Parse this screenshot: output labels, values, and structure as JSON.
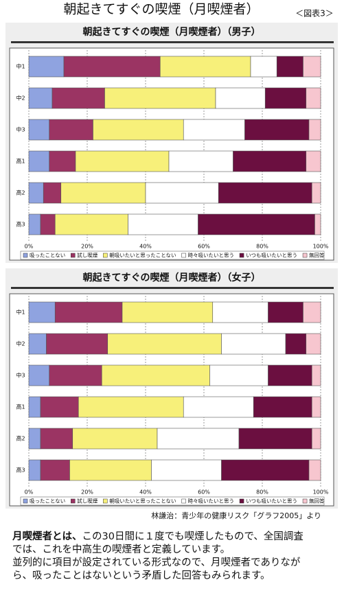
{
  "title": "朝起きてすぐの喫煙（月喫煙者）",
  "figure_label": "＜図表3＞",
  "chart_data": [
    {
      "type": "stacked-bar-horizontal",
      "title": "朝起きてすぐの喫煙（月喫煙者）（男子）",
      "categories": [
        "中1",
        "中2",
        "中3",
        "高1",
        "高2",
        "高3"
      ],
      "series": [
        {
          "name": "吸ったことない",
          "color": "#8fa3e0",
          "values": [
            12,
            8,
            7,
            7,
            5,
            4
          ]
        },
        {
          "name": "試し喫煙",
          "color": "#9b3463",
          "values": [
            33,
            18,
            15,
            9,
            6,
            5
          ]
        },
        {
          "name": "朝吸いたいと思ったことない",
          "color": "#f7f07a",
          "values": [
            31,
            38,
            31,
            32,
            29,
            25
          ]
        },
        {
          "name": "時々吸いたいと思う",
          "color": "#ffffff",
          "values": [
            9,
            17,
            21,
            22,
            25,
            24
          ]
        },
        {
          "name": "いつも吸いたいと思う",
          "color": "#6b0f40",
          "values": [
            9,
            14,
            22,
            25,
            32,
            40
          ]
        },
        {
          "name": "無回答",
          "color": "#f7c6cf",
          "values": [
            6,
            5,
            4,
            5,
            3,
            2
          ]
        }
      ],
      "xlim": [
        0,
        100
      ],
      "xticks": [
        {
          "value": 0,
          "label": "0%"
        },
        {
          "value": 20,
          "label": "20%"
        },
        {
          "value": 40,
          "label": "40%"
        },
        {
          "value": 60,
          "label": "60%"
        },
        {
          "value": 80,
          "label": "80%"
        },
        {
          "value": 100,
          "label": "100%"
        }
      ],
      "grid": true,
      "legend": "bottom"
    },
    {
      "type": "stacked-bar-horizontal",
      "title": "朝起きてすぐの喫煙（月喫煙者）（女子）",
      "categories": [
        "中1",
        "中2",
        "中3",
        "高1",
        "高2",
        "高3"
      ],
      "series": [
        {
          "name": "吸ったことない",
          "color": "#8fa3e0",
          "values": [
            9,
            6,
            7,
            4,
            4,
            4
          ]
        },
        {
          "name": "試し喫煙",
          "color": "#9b3463",
          "values": [
            23,
            21,
            18,
            13,
            11,
            10
          ]
        },
        {
          "name": "朝吸いたいと思ったことない",
          "color": "#f7f07a",
          "values": [
            31,
            39,
            37,
            36,
            29,
            28
          ]
        },
        {
          "name": "時々吸いたいと思う",
          "color": "#ffffff",
          "values": [
            19,
            22,
            20,
            24,
            28,
            24
          ]
        },
        {
          "name": "いつも吸いたいと思う",
          "color": "#6b0f40",
          "values": [
            12,
            7,
            15,
            20,
            25,
            30
          ]
        },
        {
          "name": "無回答",
          "color": "#f7c6cf",
          "values": [
            6,
            5,
            3,
            3,
            3,
            4
          ]
        }
      ],
      "xlim": [
        0,
        100
      ],
      "xticks": [
        {
          "value": 0,
          "label": "0%"
        },
        {
          "value": 20,
          "label": "20%"
        },
        {
          "value": 40,
          "label": "40%"
        },
        {
          "value": 60,
          "label": "60%"
        },
        {
          "value": 80,
          "label": "80%"
        },
        {
          "value": 100,
          "label": "100%"
        }
      ],
      "grid": true,
      "legend": "bottom"
    }
  ],
  "source": "林謙治：青少年の健康リスク「グラフ2005」より",
  "note": {
    "term": "月喫煙者とは、",
    "lines": [
      "この30日間に１度でも喫煙したもので、全国調査",
      "では、これを中高生の喫煙者と定義しています。",
      "並列的に項目が設定されている形式なので、月喫煙者でありなが",
      "ら、吸ったことはないという矛盾した回答もみられます。"
    ]
  }
}
